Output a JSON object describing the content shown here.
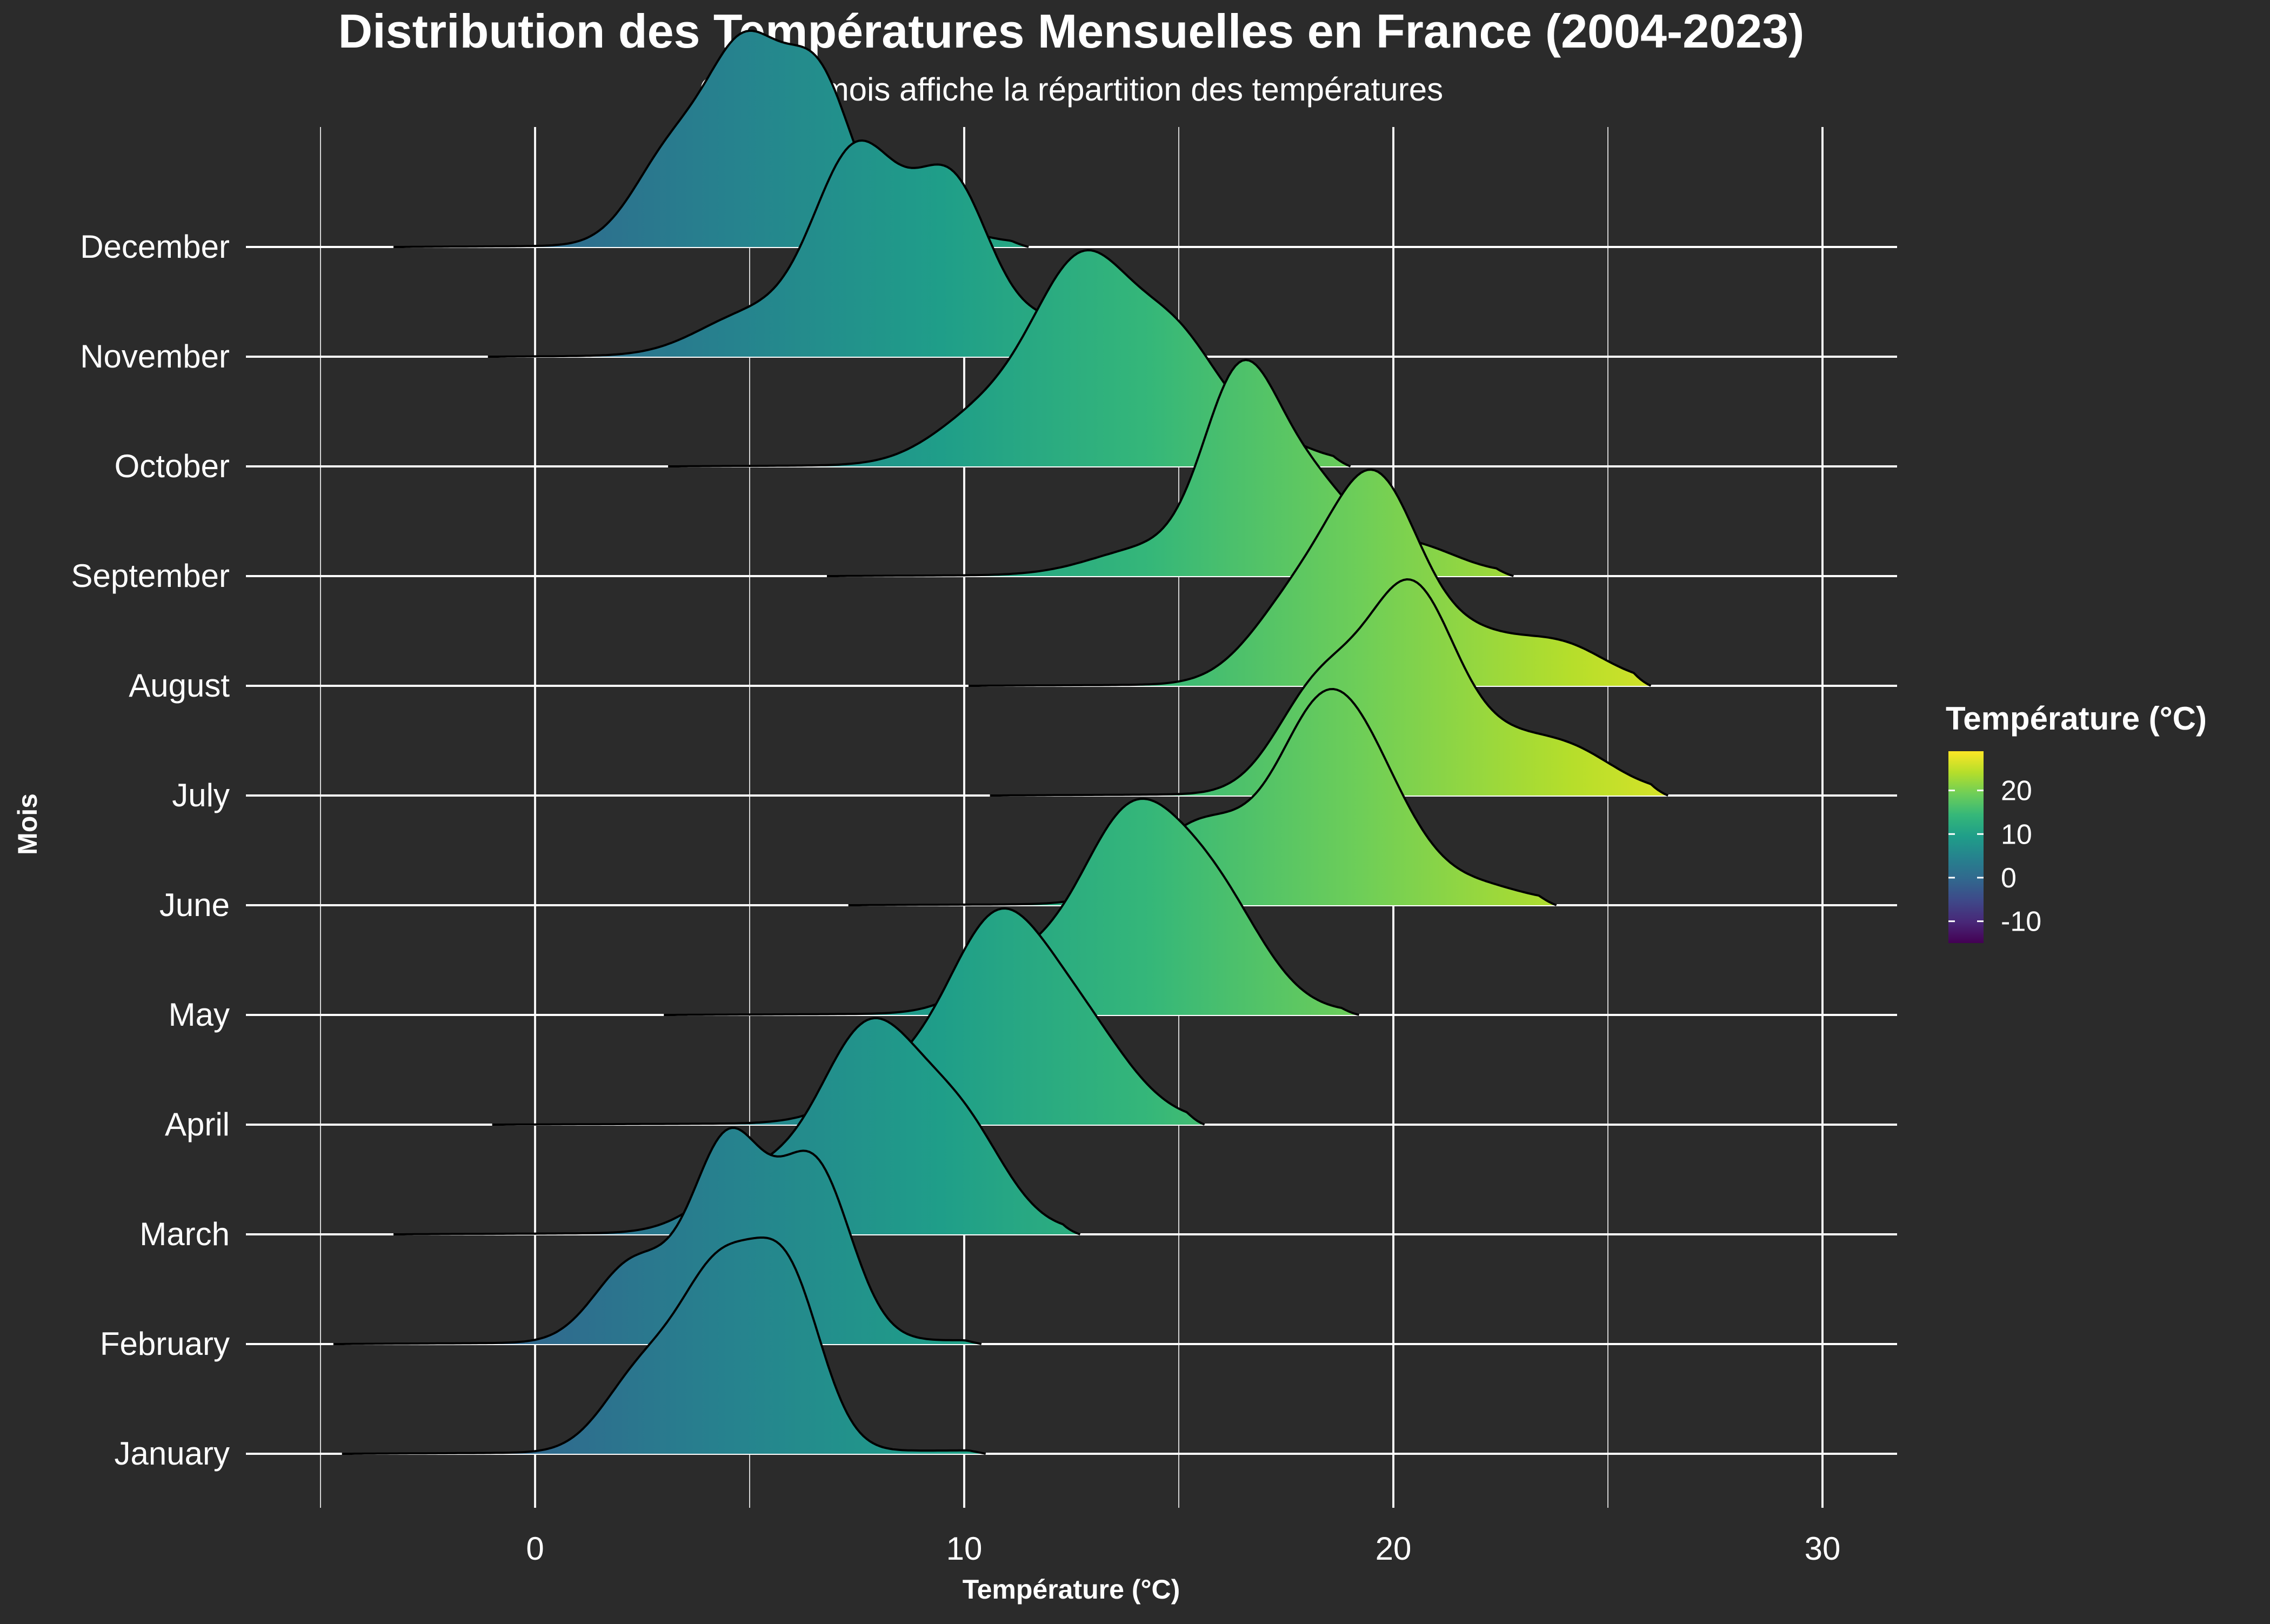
{
  "chart_data": {
    "type": "ridgeline",
    "title": "Distribution des Températures Mensuelles en France (2004-2023)",
    "subtitle": "Chaque mois affiche la répartition des températures",
    "xlabel": "Température (°C)",
    "ylabel": "Mois",
    "xlim": [
      -7.5,
      32
    ],
    "x_ticks": [
      0,
      10,
      20,
      30
    ],
    "grid": true,
    "legend": {
      "title": "Température (°C)",
      "placement": "right",
      "ticks": [
        20,
        10,
        0,
        -10
      ],
      "range": [
        -15,
        29
      ],
      "palette": [
        "#440154",
        "#482878",
        "#3e4989",
        "#31688e",
        "#26828e",
        "#1f9e89",
        "#35b779",
        "#6ece58",
        "#b5de2b",
        "#fde725"
      ]
    },
    "series": [
      {
        "name": "January",
        "range": [
          -4.5,
          10.5
        ],
        "peaks": [
          [
            2.5,
            0.45,
            0.9
          ],
          [
            4.3,
            1.0,
            0.9
          ],
          [
            5.9,
            0.95,
            0.8
          ]
        ]
      },
      {
        "name": "February",
        "range": [
          -4.7,
          10.4
        ],
        "peaks": [
          [
            2.3,
            0.4,
            0.9
          ],
          [
            4.5,
            1.0,
            0.85
          ],
          [
            6.5,
            0.88,
            0.85
          ]
        ]
      },
      {
        "name": "March",
        "range": [
          -3.3,
          12.7
        ],
        "peaks": [
          [
            5.0,
            0.25,
            1.1
          ],
          [
            7.8,
            1.0,
            1.2
          ],
          [
            10.0,
            0.45,
            1.0
          ]
        ]
      },
      {
        "name": "April",
        "range": [
          -1.0,
          15.6
        ],
        "peaks": [
          [
            8.5,
            0.25,
            1.2
          ],
          [
            10.7,
            1.0,
            1.1
          ],
          [
            12.6,
            0.55,
            1.2
          ]
        ]
      },
      {
        "name": "May",
        "range": [
          3.0,
          19.2
        ],
        "peaks": [
          [
            11.3,
            0.25,
            1.1
          ],
          [
            13.8,
            1.0,
            1.15
          ],
          [
            15.8,
            0.62,
            1.15
          ]
        ]
      },
      {
        "name": "June",
        "range": [
          7.3,
          23.8
        ],
        "peaks": [
          [
            15.5,
            0.4,
            1.2
          ],
          [
            18.4,
            0.95,
            1.1
          ],
          [
            19.9,
            0.3,
            1.0
          ],
          [
            22.0,
            0.08,
            1.0
          ]
        ]
      },
      {
        "name": "July",
        "range": [
          10.6,
          26.4
        ],
        "peaks": [
          [
            18.3,
            0.55,
            1.0
          ],
          [
            20.4,
            1.0,
            1.0
          ],
          [
            22.5,
            0.25,
            1.2
          ],
          [
            24.3,
            0.16,
            1.0
          ]
        ]
      },
      {
        "name": "August",
        "range": [
          10.1,
          26.0
        ],
        "peaks": [
          [
            17.8,
            0.45,
            1.1
          ],
          [
            19.6,
            1.0,
            1.0
          ],
          [
            21.8,
            0.25,
            1.2
          ],
          [
            24.0,
            0.18,
            1.0
          ]
        ]
      },
      {
        "name": "September",
        "range": [
          6.8,
          22.8
        ],
        "peaks": [
          [
            14.3,
            0.15,
            1.3
          ],
          [
            16.4,
            1.0,
            0.85
          ],
          [
            18.0,
            0.52,
            1.05
          ],
          [
            20.5,
            0.15,
            1.0
          ]
        ]
      },
      {
        "name": "October",
        "range": [
          3.1,
          19.0
        ],
        "peaks": [
          [
            10.5,
            0.25,
            1.2
          ],
          [
            12.8,
            1.0,
            1.15
          ],
          [
            15.0,
            0.55,
            1.0
          ],
          [
            17.0,
            0.12,
            1.0
          ]
        ]
      },
      {
        "name": "November",
        "range": [
          -1.1,
          14.2
        ],
        "peaks": [
          [
            5.0,
            0.2,
            1.2
          ],
          [
            7.5,
            1.0,
            1.0
          ],
          [
            9.7,
            0.82,
            0.9
          ],
          [
            12.0,
            0.15,
            1.0
          ]
        ]
      },
      {
        "name": "December",
        "range": [
          -3.3,
          11.5
        ],
        "peaks": [
          [
            3.2,
            0.5,
            0.9
          ],
          [
            4.9,
            1.0,
            0.85
          ],
          [
            6.6,
            0.88,
            0.8
          ],
          [
            9.0,
            0.12,
            1.0
          ]
        ]
      }
    ]
  }
}
